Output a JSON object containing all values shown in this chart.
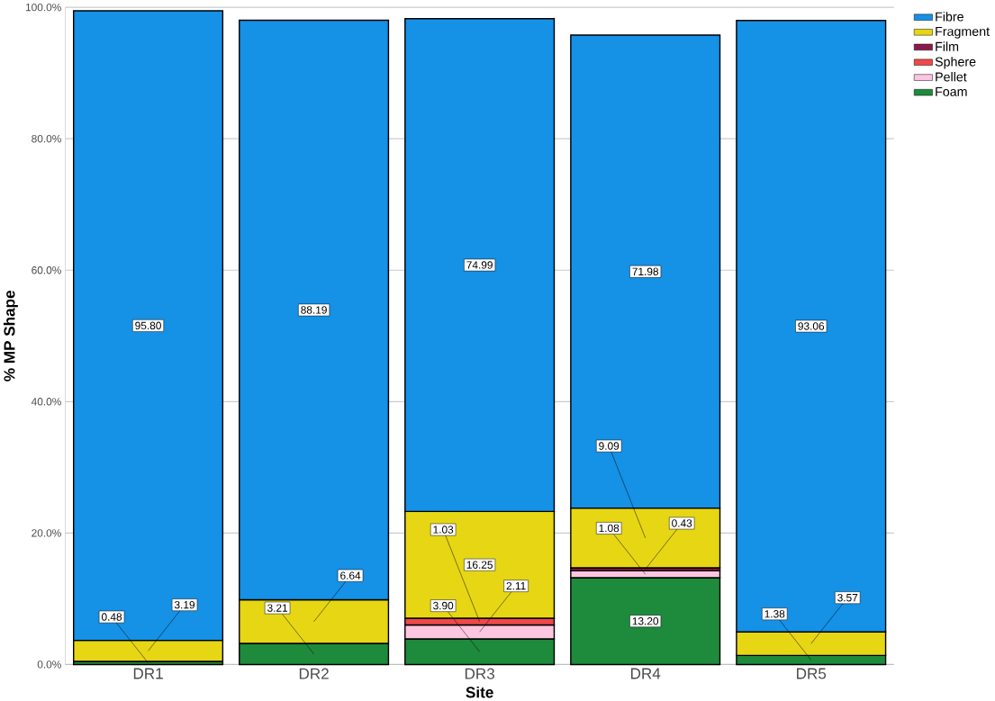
{
  "chart_data": {
    "type": "bar",
    "stacked": true,
    "xlabel": "Site",
    "ylabel": "% MP Shape",
    "categories": [
      "DR1",
      "DR2",
      "DR3",
      "DR4",
      "DR5"
    ],
    "series": [
      {
        "name": "Foam",
        "color": "#1e8a3c",
        "values": [
          0.48,
          3.21,
          3.9,
          13.2,
          1.38
        ],
        "value_labels": [
          "0.48",
          "3.21",
          "3.90",
          "13.20",
          "1.38"
        ]
      },
      {
        "name": "Pellet",
        "color": "#fcc6e0",
        "values": [
          null,
          null,
          2.11,
          1.08,
          null
        ],
        "value_labels": [
          null,
          null,
          "2.11",
          "1.08",
          null
        ]
      },
      {
        "name": "Sphere",
        "color": "#f04848",
        "values": [
          null,
          null,
          1.03,
          null,
          null
        ],
        "value_labels": [
          null,
          null,
          "1.03",
          null,
          null
        ]
      },
      {
        "name": "Film",
        "color": "#8b1a4a",
        "values": [
          null,
          null,
          null,
          0.43,
          null
        ],
        "value_labels": [
          null,
          null,
          null,
          "0.43",
          null
        ]
      },
      {
        "name": "Fragment",
        "color": "#e6d614",
        "values": [
          3.19,
          6.64,
          16.25,
          9.09,
          3.57
        ],
        "value_labels": [
          "3.19",
          "6.64",
          "16.25",
          "9.09",
          "3.57"
        ]
      },
      {
        "name": "Fibre",
        "color": "#1591e6",
        "values": [
          95.8,
          88.19,
          74.99,
          71.98,
          93.06
        ],
        "value_labels": [
          "95.80",
          "88.19",
          "74.99",
          "71.98",
          "93.06"
        ]
      }
    ],
    "ylim": [
      0,
      100
    ],
    "yticks": [
      {
        "value": 0,
        "label": "0.0%"
      },
      {
        "value": 20,
        "label": "20.0%"
      },
      {
        "value": 40,
        "label": "40.0%"
      },
      {
        "value": 60,
        "label": "60.0%"
      },
      {
        "value": 80,
        "label": "80.0%"
      },
      {
        "value": 100,
        "label": "100.0%"
      }
    ],
    "grid": "y",
    "legend": "top right"
  }
}
